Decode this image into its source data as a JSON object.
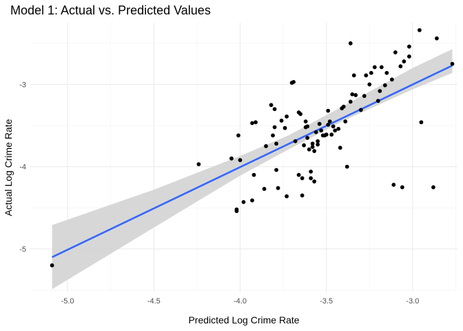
{
  "chart_data": {
    "type": "scatter",
    "title": "Model 1: Actual vs. Predicted Values",
    "xlabel": "Predicted Log Crime Rate",
    "ylabel": "Actual Log Crime Rate",
    "xlim": [
      -5.22,
      -2.74
    ],
    "ylim": [
      -5.52,
      -2.25
    ],
    "x_ticks": [
      -5.0,
      -4.5,
      -4.0,
      -3.5,
      -3.0
    ],
    "x_tick_labels": [
      "-5.0",
      "-4.5",
      "-4.0",
      "-3.5",
      "-3.0"
    ],
    "y_ticks": [
      -5,
      -4,
      -3
    ],
    "y_tick_labels": [
      "-5",
      "-4",
      "-3"
    ],
    "grid": true,
    "point_color": "#000000",
    "fit_line_color": "#3366ff",
    "ribbon_color": "#d3d3d3",
    "fit_line": [
      [
        -5.09,
        -5.1
      ],
      [
        -2.77,
        -2.77
      ]
    ],
    "confidence_band": [
      {
        "x": -5.09,
        "lower": -5.49,
        "upper": -4.71
      },
      {
        "x": -4.5,
        "lower": -4.74,
        "upper": -4.28
      },
      {
        "x": -4.0,
        "lower": -4.11,
        "upper": -3.87
      },
      {
        "x": -3.72,
        "lower": -3.79,
        "upper": -3.62
      },
      {
        "x": -3.4,
        "lower": -3.44,
        "upper": -3.26
      },
      {
        "x": -3.0,
        "lower": -3.06,
        "upper": -2.8
      },
      {
        "x": -2.77,
        "lower": -2.86,
        "upper": -2.57
      }
    ],
    "points": [
      [
        -5.09,
        -5.2
      ],
      [
        -4.24,
        -3.97
      ],
      [
        -4.05,
        -3.9
      ],
      [
        -4.01,
        -3.62
      ],
      [
        -4.0,
        -3.92
      ],
      [
        -4.02,
        -4.52
      ],
      [
        -4.02,
        -4.54
      ],
      [
        -3.98,
        -4.43
      ],
      [
        -3.93,
        -4.41
      ],
      [
        -3.92,
        -4.1
      ],
      [
        -3.93,
        -3.47
      ],
      [
        -3.91,
        -3.46
      ],
      [
        -3.86,
        -4.27
      ],
      [
        -3.85,
        -3.75
      ],
      [
        -3.82,
        -3.25
      ],
      [
        -3.81,
        -3.62
      ],
      [
        -3.8,
        -3.52
      ],
      [
        -3.8,
        -3.3
      ],
      [
        -3.79,
        -3.72
      ],
      [
        -3.79,
        -4.04
      ],
      [
        -3.78,
        -4.26
      ],
      [
        -3.76,
        -3.44
      ],
      [
        -3.74,
        -3.53
      ],
      [
        -3.73,
        -4.36
      ],
      [
        -3.73,
        -3.39
      ],
      [
        -3.7,
        -2.98
      ],
      [
        -3.69,
        -2.97
      ],
      [
        -3.68,
        -3.69
      ],
      [
        -3.66,
        -4.1
      ],
      [
        -3.66,
        -3.34
      ],
      [
        -3.65,
        -3.36
      ],
      [
        -3.64,
        -4.35
      ],
      [
        -3.64,
        -4.14
      ],
      [
        -3.63,
        -3.74
      ],
      [
        -3.62,
        -3.52
      ],
      [
        -3.62,
        -3.45
      ],
      [
        -3.61,
        -3.51
      ],
      [
        -3.61,
        -3.65
      ],
      [
        -3.6,
        -3.79
      ],
      [
        -3.59,
        -4.06
      ],
      [
        -3.59,
        -4.14
      ],
      [
        -3.58,
        -3.72
      ],
      [
        -3.58,
        -3.76
      ],
      [
        -3.57,
        -4.18
      ],
      [
        -3.57,
        -3.81
      ],
      [
        -3.56,
        -3.58
      ],
      [
        -3.55,
        -3.73
      ],
      [
        -3.55,
        -3.69
      ],
      [
        -3.54,
        -3.48
      ],
      [
        -3.53,
        -3.56
      ],
      [
        -3.52,
        -3.62
      ],
      [
        -3.51,
        -3.62
      ],
      [
        -3.5,
        -3.61
      ],
      [
        -3.49,
        -3.49
      ],
      [
        -3.49,
        -3.32
      ],
      [
        -3.48,
        -3.45
      ],
      [
        -3.47,
        -3.61
      ],
      [
        -3.46,
        -3.51
      ],
      [
        -3.45,
        -3.56
      ],
      [
        -3.43,
        -3.54
      ],
      [
        -3.42,
        -3.77
      ],
      [
        -3.41,
        -3.29
      ],
      [
        -3.4,
        -3.27
      ],
      [
        -3.39,
        -3.45
      ],
      [
        -3.38,
        -4.0
      ],
      [
        -3.36,
        -2.5
      ],
      [
        -3.36,
        -3.21
      ],
      [
        -3.35,
        -3.12
      ],
      [
        -3.34,
        -2.89
      ],
      [
        -3.33,
        -3.13
      ],
      [
        -3.3,
        -3.31
      ],
      [
        -3.28,
        -3.14
      ],
      [
        -3.27,
        -2.89
      ],
      [
        -3.25,
        -3.0
      ],
      [
        -3.24,
        -2.86
      ],
      [
        -3.22,
        -2.79
      ],
      [
        -3.2,
        -3.2
      ],
      [
        -3.19,
        -3.08
      ],
      [
        -3.18,
        -2.79
      ],
      [
        -3.16,
        -3.01
      ],
      [
        -3.15,
        -2.86
      ],
      [
        -3.12,
        -2.94
      ],
      [
        -3.11,
        -4.22
      ],
      [
        -3.1,
        -2.61
      ],
      [
        -3.07,
        -2.78
      ],
      [
        -3.06,
        -4.25
      ],
      [
        -3.05,
        -2.72
      ],
      [
        -3.02,
        -2.54
      ],
      [
        -3.02,
        -2.66
      ],
      [
        -2.96,
        -2.34
      ],
      [
        -2.95,
        -3.46
      ],
      [
        -2.88,
        -4.25
      ],
      [
        -2.86,
        -2.44
      ],
      [
        -2.77,
        -2.75
      ]
    ]
  }
}
